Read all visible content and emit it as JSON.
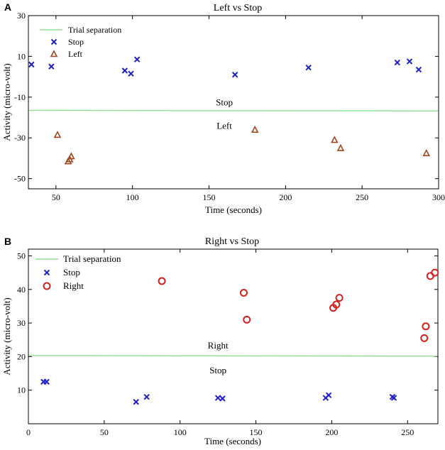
{
  "colors": {
    "stop": "#1f1fc8",
    "left": "#a0451d",
    "right": "#d42020",
    "separation": "#90e090",
    "axis": "#000000"
  },
  "chart_data": [
    {
      "panel": "A",
      "type": "scatter",
      "title": "Left vs Stop",
      "xlabel": "Time (seconds)",
      "ylabel": "Activity (micro-volt)",
      "xlim": [
        32,
        300
      ],
      "ylim": [
        -55,
        30
      ],
      "xticks": [
        50,
        100,
        150,
        200,
        250,
        300
      ],
      "yticks": [
        -50,
        -30,
        -10,
        10,
        30
      ],
      "legend": {
        "location": "top-left",
        "entries": [
          "Trial separation",
          "Stop",
          "Left"
        ]
      },
      "separation": {
        "name": "Trial separation",
        "y": -16.5,
        "above_label": "Stop",
        "below_label": "Left",
        "label_x": 160
      },
      "series": [
        {
          "name": "Stop",
          "marker": "x",
          "points": [
            [
              34,
              6
            ],
            [
              47,
              5
            ],
            [
              95,
              3
            ],
            [
              99,
              1.5
            ],
            [
              103,
              8.5
            ],
            [
              167,
              1
            ],
            [
              215,
              4.5
            ],
            [
              273,
              7
            ],
            [
              281,
              7.5
            ],
            [
              287,
              3.5
            ]
          ]
        },
        {
          "name": "Left",
          "marker": "triangle",
          "points": [
            [
              51,
              -28.5
            ],
            [
              58,
              -41.5
            ],
            [
              59,
              -40.5
            ],
            [
              60,
              -39
            ],
            [
              180,
              -26
            ],
            [
              232,
              -31
            ],
            [
              236,
              -35
            ],
            [
              292,
              -37.5
            ]
          ]
        }
      ]
    },
    {
      "panel": "B",
      "type": "scatter",
      "title": "Right vs Stop",
      "xlabel": "Time (seconds)",
      "ylabel": "Activity (micro-volt)",
      "xlim": [
        0,
        270
      ],
      "ylim": [
        0,
        52
      ],
      "xticks": [
        0,
        50,
        100,
        150,
        200,
        250
      ],
      "yticks": [
        10,
        20,
        30,
        40,
        50
      ],
      "legend": {
        "location": "top-left",
        "entries": [
          "Trial separation",
          "Stop",
          "Right"
        ]
      },
      "separation": {
        "name": "Trial separation",
        "y": 20.3,
        "above_label": "Right",
        "below_label": "Stop",
        "label_x": 125
      },
      "series": [
        {
          "name": "Stop",
          "marker": "x",
          "points": [
            [
              10,
              12.5
            ],
            [
              12,
              12.5
            ],
            [
              71,
              6.5
            ],
            [
              78,
              8
            ],
            [
              125,
              7.7
            ],
            [
              128,
              7.5
            ],
            [
              196,
              7.7
            ],
            [
              198,
              8.5
            ],
            [
              240,
              8
            ],
            [
              241,
              7.7
            ]
          ]
        },
        {
          "name": "Right",
          "marker": "circle",
          "points": [
            [
              88,
              42.5
            ],
            [
              142,
              39
            ],
            [
              144,
              31
            ],
            [
              201,
              34.5
            ],
            [
              203,
              35.5
            ],
            [
              205,
              37.5
            ],
            [
              261,
              25.5
            ],
            [
              262,
              29
            ],
            [
              265,
              44
            ],
            [
              268,
              45
            ]
          ]
        }
      ]
    }
  ]
}
